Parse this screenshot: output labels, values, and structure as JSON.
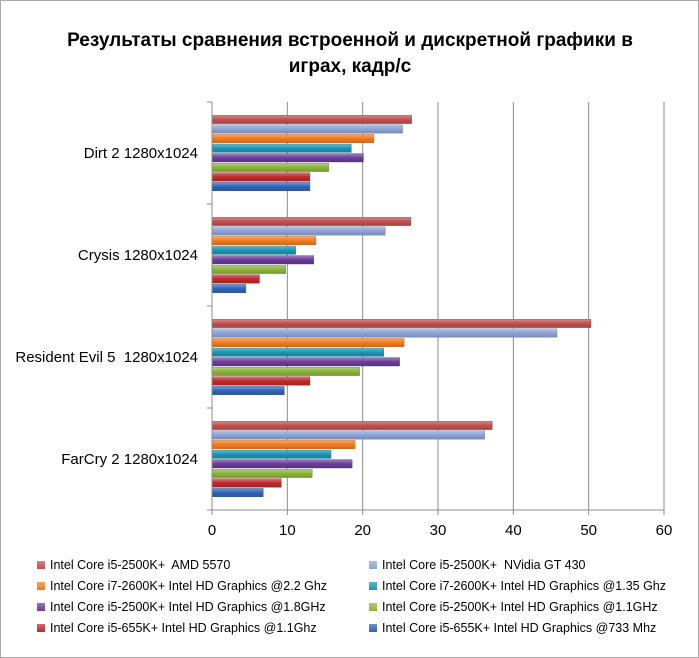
{
  "chart_data": {
    "type": "bar",
    "orientation": "horizontal",
    "title": "Результаты сравнения встроенной и дискретной графики в играх, кадр/с",
    "title_lines": [
      "Результаты сравнения встроенной и дискретной графики в",
      "играх, кадр/с"
    ],
    "xlabel": "",
    "ylabel": "",
    "xlim": [
      0,
      60
    ],
    "x_ticks": [
      0,
      10,
      20,
      30,
      40,
      50,
      60
    ],
    "x_tick_labels": [
      "0",
      "10",
      "20",
      "30",
      "40",
      "50",
      "60"
    ],
    "grid": true,
    "legend_position": "bottom",
    "categories": [
      "Dirt 2 1280x1024",
      "Crysis 1280x1024",
      "Resident Evil 5  1280x1024",
      "FarCry 2 1280x1024"
    ],
    "series": [
      {
        "name": "Intel Core i5-2500K+  AMD 5570",
        "color": "#c0504d",
        "values": [
          26.5,
          26.4,
          50.3,
          37.2
        ]
      },
      {
        "name": "Intel Core i5-2500K+  NVidia GT 430",
        "color": "#8da3d6",
        "values": [
          25.3,
          23.0,
          45.8,
          36.2
        ]
      },
      {
        "name": "Intel Core i7-2600K+ Intel HD Graphics @2.2 Ghz",
        "color": "#f07b1e",
        "values": [
          21.5,
          13.8,
          25.5,
          19.0
        ]
      },
      {
        "name": "Intel Core i7-2600K+ Intel HD Graphics @1.35 Ghz",
        "color": "#1d95b3",
        "values": [
          18.5,
          11.1,
          22.8,
          15.8
        ]
      },
      {
        "name": "Intel Core i5-2500K+ Intel HD Graphics @1.8GHz",
        "color": "#6b3d9a",
        "values": [
          20.1,
          13.5,
          24.9,
          18.6
        ]
      },
      {
        "name": "Intel Core i5-2500K+ Intel HD Graphics @1.1GHz",
        "color": "#8cb43a",
        "values": [
          15.5,
          9.8,
          19.6,
          13.3
        ]
      },
      {
        "name": "Intel Core i5-655K+ Intel HD Graphics @1.1Ghz",
        "color": "#be2a2a",
        "values": [
          13.0,
          6.3,
          13.0,
          9.2
        ]
      },
      {
        "name": "Intel Core i5-655K+ Intel HD Graphics @733 Mhz",
        "color": "#2f64b5",
        "values": [
          13.0,
          4.5,
          9.6,
          6.8
        ]
      }
    ]
  }
}
